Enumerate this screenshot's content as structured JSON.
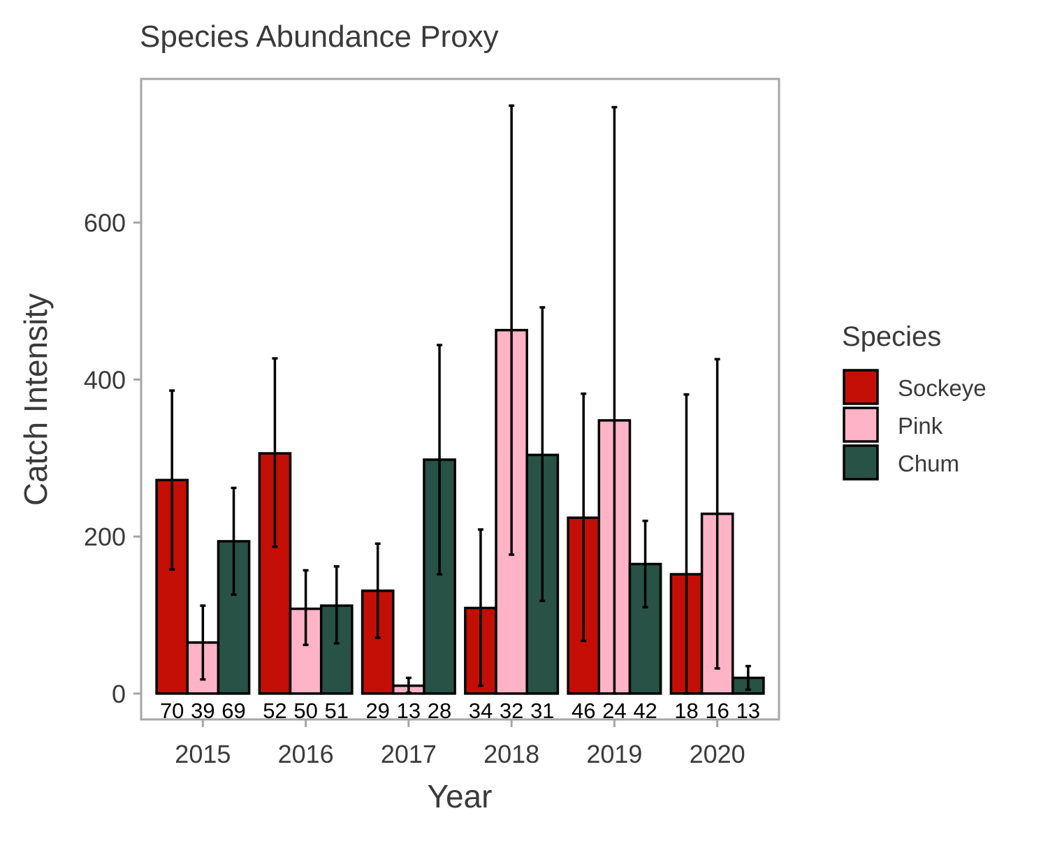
{
  "chart_data": {
    "type": "bar",
    "title": "Species Abundance Proxy",
    "xlabel": "Year",
    "ylabel": "Catch Intensity",
    "categories": [
      "2015",
      "2016",
      "2017",
      "2018",
      "2019",
      "2020"
    ],
    "ylim": [
      -33,
      783
    ],
    "yticks": [
      0,
      200,
      400,
      600
    ],
    "grid": false,
    "legend": {
      "title": "Species",
      "position": "right"
    },
    "series": [
      {
        "name": "Sockeye",
        "color": "#C40F06",
        "values": [
          272,
          306,
          131,
          109,
          224,
          152
        ],
        "err_low": [
          158,
          187,
          71,
          10,
          67,
          0
        ],
        "err_high": [
          386,
          427,
          191,
          209,
          382,
          381
        ],
        "counts": [
          "70",
          "52",
          "29",
          "34",
          "46",
          "18"
        ]
      },
      {
        "name": "Pink",
        "color": "#FFB3C6",
        "values": [
          65,
          108,
          10,
          463,
          348,
          229
        ],
        "err_low": [
          18,
          62,
          1,
          177,
          0,
          32
        ],
        "err_high": [
          112,
          157,
          20,
          749,
          747,
          426
        ],
        "counts": [
          "39",
          "50",
          "13",
          "32",
          "24",
          "16"
        ]
      },
      {
        "name": "Chum",
        "color": "#275245",
        "values": [
          194,
          112,
          298,
          304,
          165,
          20
        ],
        "err_low": [
          126,
          64,
          152,
          118,
          110,
          5
        ],
        "err_high": [
          262,
          162,
          444,
          492,
          220,
          35
        ],
        "counts": [
          "69",
          "51",
          "28",
          "31",
          "42",
          "13"
        ]
      }
    ]
  }
}
